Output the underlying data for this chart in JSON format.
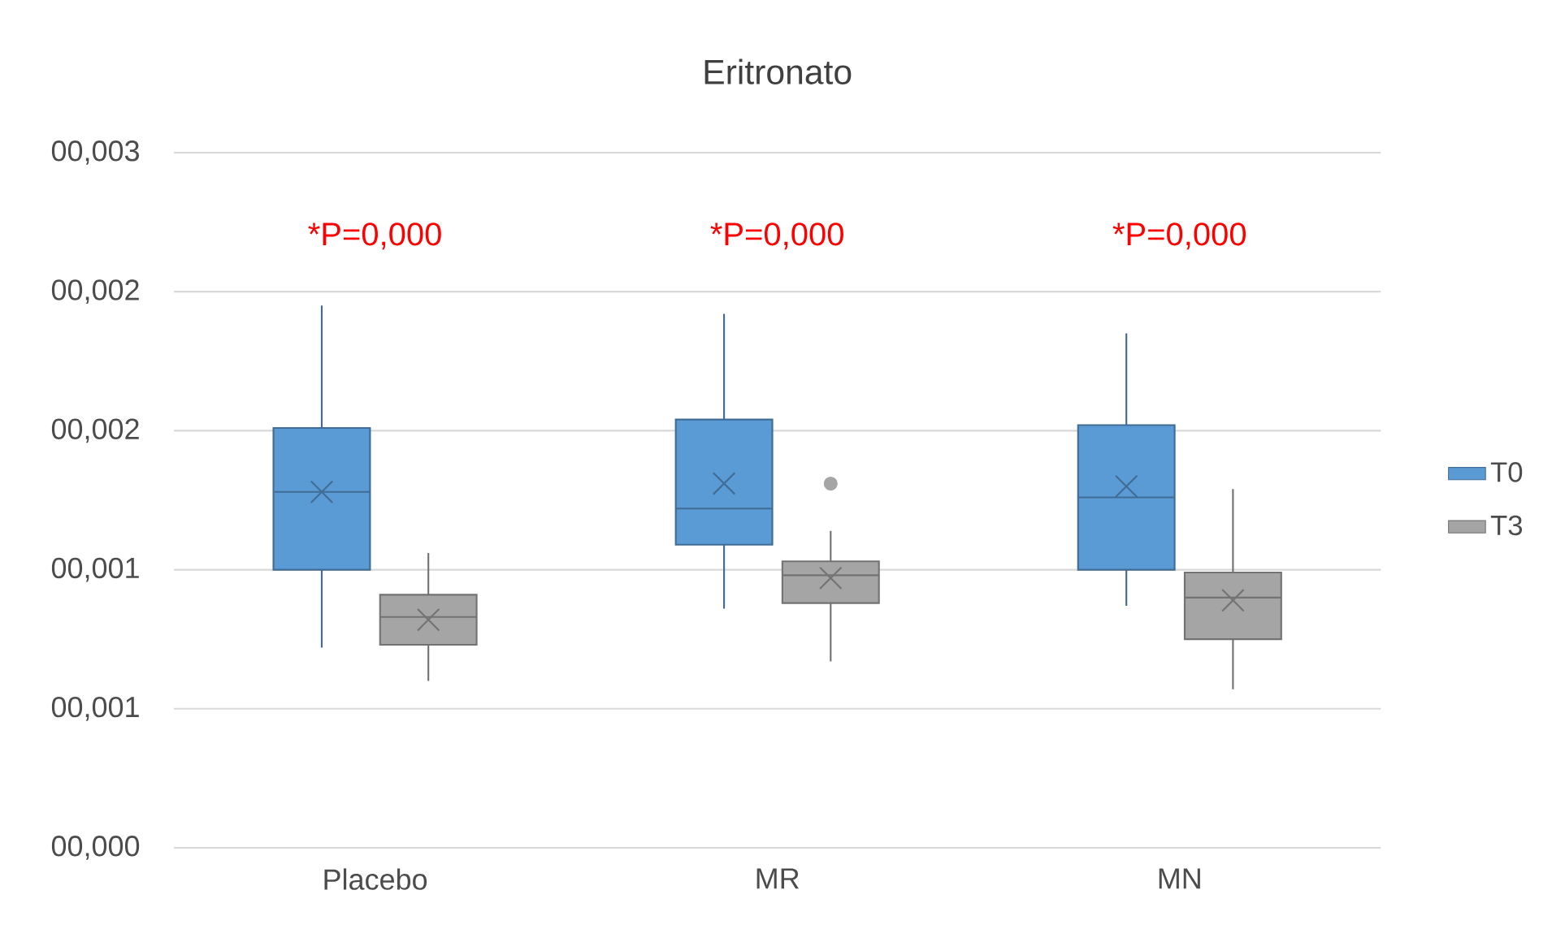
{
  "chart_data": {
    "type": "box",
    "title": "Eritronato",
    "categories": [
      "Placebo",
      "MR",
      "MN"
    ],
    "series": [
      {
        "name": "T0",
        "color": "#5b9bd5",
        "boxes": [
          {
            "low": 0.00072,
            "q1": 0.001,
            "median": 0.00128,
            "q3": 0.00151,
            "high": 0.00195,
            "mean": 0.00128
          },
          {
            "low": 0.00086,
            "q1": 0.00109,
            "median": 0.00122,
            "q3": 0.00154,
            "high": 0.00192,
            "mean": 0.00131
          },
          {
            "low": 0.00087,
            "q1": 0.001,
            "median": 0.00126,
            "q3": 0.00152,
            "high": 0.00185,
            "mean": 0.0013
          }
        ]
      },
      {
        "name": "T3",
        "color": "#a5a5a5",
        "boxes": [
          {
            "low": 0.0006,
            "q1": 0.00073,
            "median": 0.00083,
            "q3": 0.00091,
            "high": 0.00106,
            "mean": 0.00082
          },
          {
            "low": 0.00067,
            "q1": 0.00088,
            "median": 0.00098,
            "q3": 0.00103,
            "high": 0.00114,
            "mean": 0.00097,
            "outliers": [
              0.00131
            ]
          },
          {
            "low": 0.00057,
            "q1": 0.00075,
            "median": 0.0009,
            "q3": 0.00099,
            "high": 0.00129,
            "mean": 0.00089
          }
        ]
      }
    ],
    "ylim": [
      0,
      0.0025
    ],
    "yticks": [
      {
        "value": 0,
        "label": "00,000"
      },
      {
        "value": 0.0005,
        "label": "00,001"
      },
      {
        "value": 0.001,
        "label": "00,001"
      },
      {
        "value": 0.0015,
        "label": "00,002"
      },
      {
        "value": 0.002,
        "label": "00,002"
      },
      {
        "value": 0.0025,
        "label": "00,003"
      }
    ],
    "grid": "y",
    "legend": "right",
    "annotations": [
      "*P=0,000",
      "*P=0,000",
      "*P=0,000"
    ]
  }
}
